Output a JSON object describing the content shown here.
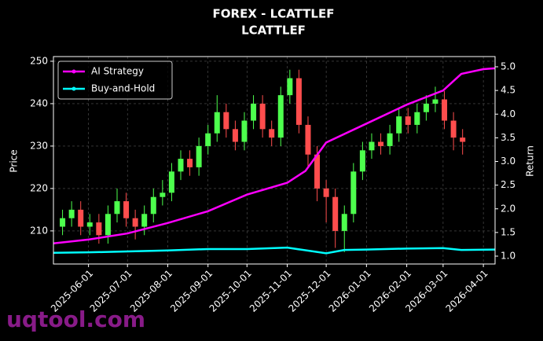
{
  "chart_data": {
    "type": "candlestick",
    "title": "FOREX - LCATTLEF",
    "subtitle": "LCATTLEF",
    "ylabel": "Price",
    "y2label": "Return",
    "watermark": "uqtool.com",
    "xlim": [
      "2025-05-05",
      "2026-04-10"
    ],
    "xticks": [
      "2025-06-01",
      "2025-07-01",
      "2025-08-01",
      "2025-09-01",
      "2025-10-01",
      "2025-11-01",
      "2025-12-01",
      "2026-01-01",
      "2026-02-01",
      "2026-03-01",
      "2026-04-01"
    ],
    "ylim": [
      202.2,
      251.1
    ],
    "yticks": [
      210,
      220,
      230,
      240,
      250
    ],
    "y2lim": [
      0.834,
      5.216
    ],
    "y2ticks": [
      {
        "value": 1,
        "label": "1.0"
      },
      1.5,
      {
        "value": 2,
        "label": "2.0"
      },
      2.5,
      {
        "value": 3,
        "label": "3.0"
      },
      3.5,
      {
        "value": 4,
        "label": "4.0"
      },
      4.5,
      {
        "value": 5,
        "label": "5.0"
      }
    ],
    "grid": true,
    "legend": "upper left",
    "up_color": "#4dff4d",
    "down_color": "#ff4d4d",
    "x": [
      "2025-05-12",
      "2025-05-19",
      "2025-05-26",
      "2025-06-02",
      "2025-06-09",
      "2025-06-16",
      "2025-06-23",
      "2025-06-30",
      "2025-07-07",
      "2025-07-14",
      "2025-07-21",
      "2025-07-28",
      "2025-08-04",
      "2025-08-11",
      "2025-08-18",
      "2025-08-25",
      "2025-09-01",
      "2025-09-08",
      "2025-09-15",
      "2025-09-22",
      "2025-09-29",
      "2025-10-06",
      "2025-10-13",
      "2025-10-20",
      "2025-10-27",
      "2025-11-03",
      "2025-11-10",
      "2025-11-17",
      "2025-11-24",
      "2025-12-01",
      "2025-12-08",
      "2025-12-15",
      "2025-12-22",
      "2025-12-29",
      "2026-01-05",
      "2026-01-12",
      "2026-01-19",
      "2026-01-26",
      "2026-02-02",
      "2026-02-09",
      "2026-02-16",
      "2026-02-23",
      "2026-03-02",
      "2026-03-09",
      "2026-03-16"
    ],
    "open": [
      211,
      213,
      215,
      211,
      212,
      209,
      214,
      217,
      213,
      211,
      214,
      218,
      219,
      224,
      227,
      225,
      230,
      233,
      238,
      234,
      231,
      236,
      240,
      234,
      232,
      242,
      246,
      235,
      228,
      220,
      218,
      210,
      214,
      224,
      229,
      231,
      230,
      233,
      237,
      235,
      238,
      240,
      241,
      236,
      232
    ],
    "high": [
      215,
      217,
      217,
      214,
      214,
      216,
      220,
      219,
      215,
      216,
      220,
      222,
      226,
      229,
      229,
      232,
      235,
      242,
      240,
      236,
      238,
      242,
      242,
      236,
      244,
      248,
      248,
      237,
      230,
      222,
      220,
      216,
      226,
      231,
      233,
      233,
      235,
      239,
      239,
      240,
      242,
      244,
      243,
      238,
      234
    ],
    "low": [
      209,
      211,
      209,
      209,
      207,
      207,
      212,
      211,
      208,
      209,
      212,
      216,
      217,
      222,
      223,
      223,
      228,
      231,
      232,
      229,
      229,
      234,
      232,
      230,
      230,
      240,
      233,
      225,
      217,
      212,
      206,
      205,
      212,
      222,
      227,
      228,
      228,
      231,
      233,
      233,
      236,
      238,
      234,
      229,
      228
    ],
    "close": [
      213,
      215,
      211,
      212,
      209,
      214,
      217,
      213,
      211,
      214,
      218,
      219,
      224,
      227,
      225,
      230,
      233,
      238,
      234,
      231,
      236,
      240,
      234,
      232,
      242,
      246,
      235,
      228,
      220,
      218,
      210,
      214,
      224,
      229,
      231,
      230,
      233,
      237,
      235,
      238,
      240,
      241,
      236,
      232,
      231
    ],
    "series": [
      {
        "name": "AI Strategy",
        "color": "#ff00ff",
        "axis": "y2",
        "x": [
          "2025-05-05",
          "2025-06-01",
          "2025-07-01",
          "2025-08-01",
          "2025-09-01",
          "2025-10-01",
          "2025-11-01",
          "2025-11-15",
          "2025-12-01",
          "2026-01-01",
          "2026-02-01",
          "2026-03-01",
          "2026-03-15",
          "2026-04-01",
          "2026-04-10"
        ],
        "values": [
          1.27,
          1.35,
          1.48,
          1.7,
          1.95,
          2.3,
          2.55,
          2.8,
          3.4,
          3.8,
          4.2,
          4.5,
          4.85,
          4.95,
          4.97
        ]
      },
      {
        "name": "Buy-and-Hold",
        "color": "#00ffff",
        "axis": "y2",
        "x": [
          "2025-05-05",
          "2025-06-01",
          "2025-07-01",
          "2025-08-01",
          "2025-09-01",
          "2025-10-01",
          "2025-11-01",
          "2025-12-01",
          "2025-12-15",
          "2026-01-01",
          "2026-02-01",
          "2026-03-01",
          "2026-03-15",
          "2026-04-10"
        ],
        "values": [
          1.07,
          1.08,
          1.1,
          1.12,
          1.15,
          1.15,
          1.18,
          1.06,
          1.13,
          1.14,
          1.16,
          1.17,
          1.13,
          1.14
        ]
      }
    ]
  }
}
